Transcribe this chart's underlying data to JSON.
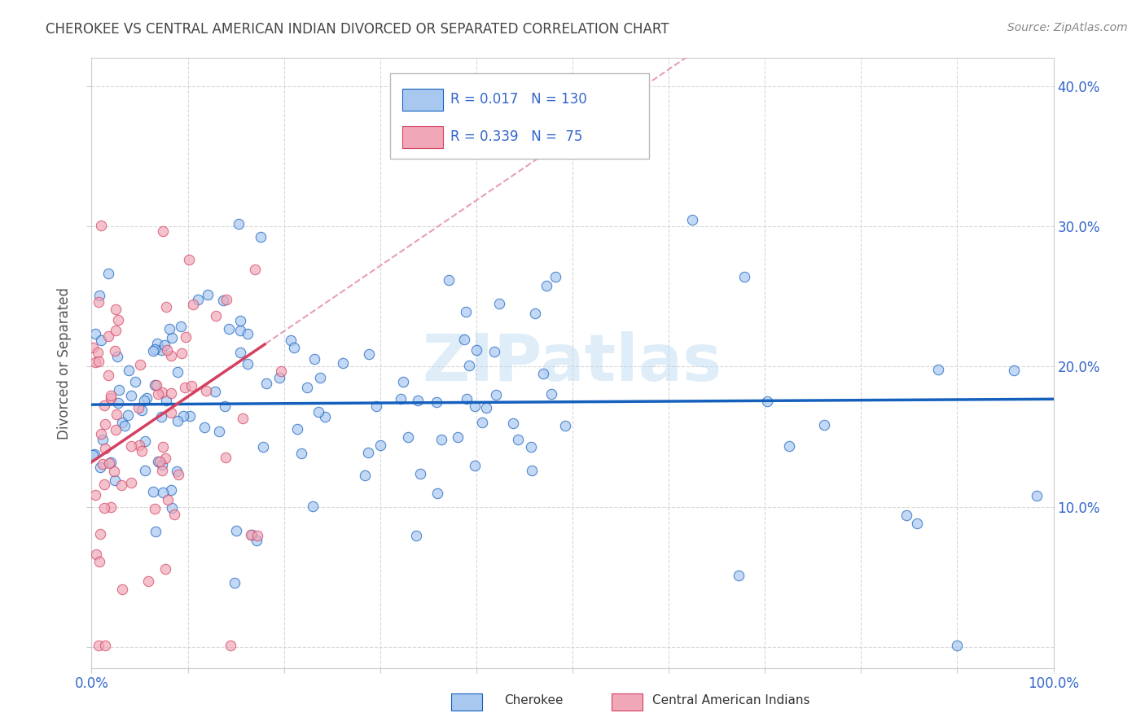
{
  "title": "CHEROKEE VS CENTRAL AMERICAN INDIAN DIVORCED OR SEPARATED CORRELATION CHART",
  "source": "Source: ZipAtlas.com",
  "ylabel": "Divorced or Separated",
  "xlim": [
    0,
    1.0
  ],
  "ylim": [
    -0.015,
    0.42
  ],
  "xticks": [
    0.0,
    0.1,
    0.2,
    0.3,
    0.4,
    0.5,
    0.6,
    0.7,
    0.8,
    0.9,
    1.0
  ],
  "yticks": [
    0.0,
    0.1,
    0.2,
    0.3,
    0.4
  ],
  "series1_label": "Cherokee",
  "series1_color": "#a8c8f0",
  "series1_R": 0.017,
  "series1_N": 130,
  "series2_label": "Central American Indians",
  "series2_color": "#f0a8b8",
  "series2_R": 0.339,
  "series2_N": 75,
  "trend1_color": "#1560bd",
  "trend2_color": "#d44060",
  "watermark": "ZIPatlas",
  "background_color": "#ffffff",
  "grid_color": "#d8d8d8",
  "legend_color": "#3366cc",
  "title_color": "#444444",
  "source_color": "#888888"
}
